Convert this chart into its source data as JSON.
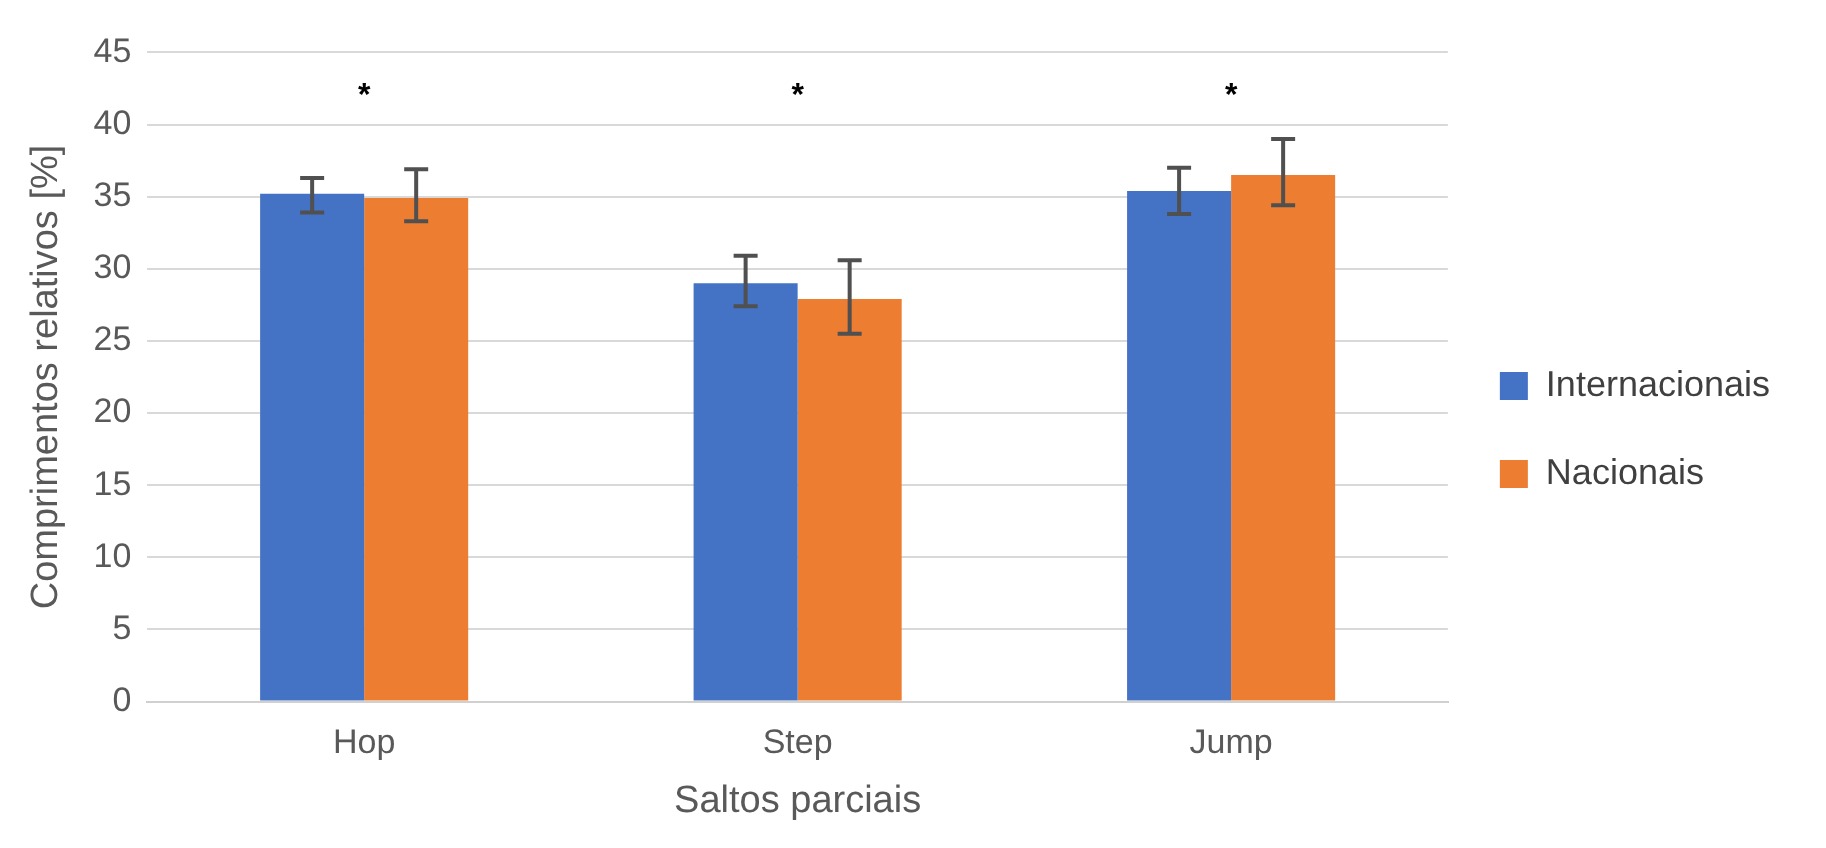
{
  "chart_data": {
    "type": "bar",
    "xlabel": "Saltos parciais",
    "ylabel": "Comprimentos relativos [%]",
    "categories": [
      "Hop",
      "Step",
      "Jump"
    ],
    "ylim": [
      0,
      45
    ],
    "yticks": [
      0,
      5,
      10,
      15,
      20,
      25,
      30,
      35,
      40,
      45
    ],
    "grid": "y",
    "legend": "right",
    "series": [
      {
        "name": "Internacionais",
        "color": "#4472c4",
        "values": [
          35.2,
          29.0,
          35.4
        ],
        "errors": [
          [
            33.9,
            36.3
          ],
          [
            27.4,
            30.9
          ],
          [
            33.8,
            37.0
          ]
        ]
      },
      {
        "name": "Nacionais",
        "color": "#ed7d31",
        "values": [
          34.9,
          27.9,
          36.5
        ],
        "errors": [
          [
            33.3,
            36.9
          ],
          [
            25.5,
            30.6
          ],
          [
            34.4,
            39.0
          ]
        ]
      }
    ],
    "annotations": [
      "*",
      "*",
      "*"
    ]
  }
}
